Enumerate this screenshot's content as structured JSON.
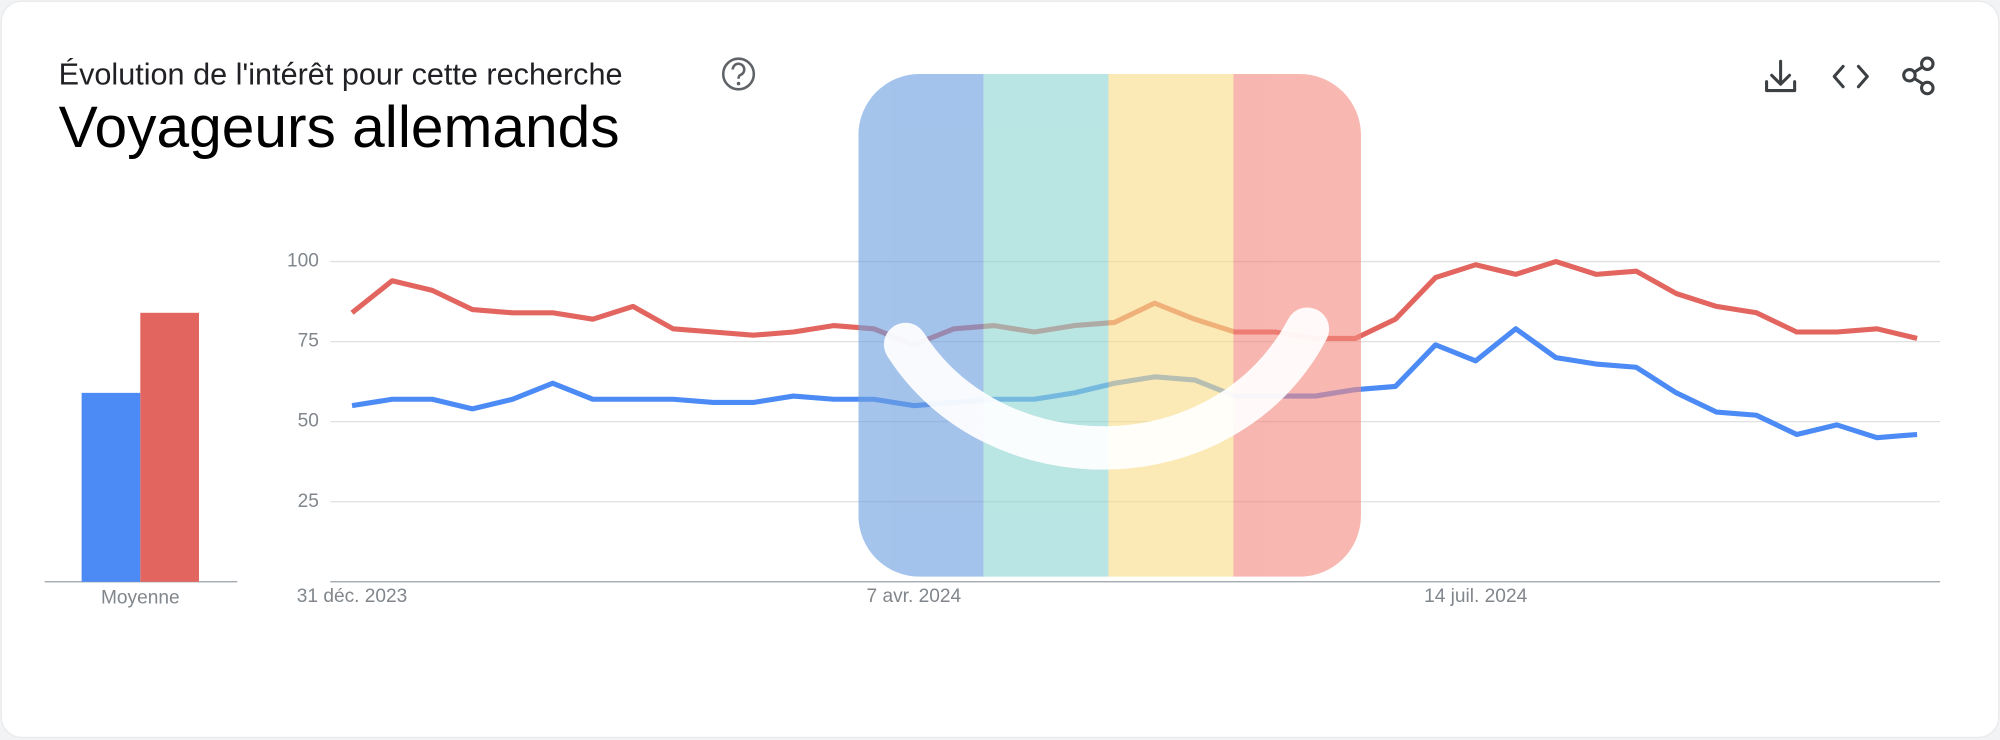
{
  "chart_data": [
    {
      "type": "bar",
      "categories": [
        "Moyenne"
      ],
      "series": [
        {
          "color": "#4c8bf5",
          "values": [
            59
          ]
        },
        {
          "color": "#e2665f",
          "values": [
            84
          ]
        }
      ]
    },
    {
      "type": "line",
      "subtitle": "Évolution de l'intérêt pour cette recherche",
      "title": "Voyageurs allemands",
      "categories": [
        "31 déc. 2023",
        null,
        null,
        null,
        null,
        null,
        null,
        null,
        null,
        null,
        null,
        null,
        null,
        null,
        "7 avr. 2024",
        null,
        null,
        null,
        null,
        null,
        null,
        null,
        null,
        null,
        null,
        null,
        null,
        null,
        "14 juil. 2024",
        null,
        null,
        null,
        null,
        null,
        null,
        null,
        null,
        null,
        null,
        null
      ],
      "series": [
        {
          "color": "#4c8bf5",
          "values": [
            55,
            57,
            57,
            54,
            57,
            62,
            57,
            57,
            57,
            56,
            56,
            58,
            57,
            57,
            55,
            56,
            57,
            57,
            59,
            62,
            64,
            63,
            58,
            58,
            58,
            60,
            61,
            74,
            69,
            79,
            70,
            68,
            67,
            59,
            53,
            52,
            46,
            49,
            45,
            46
          ]
        },
        {
          "color": "#e2665f",
          "values": [
            84,
            94,
            91,
            85,
            84,
            84,
            82,
            86,
            79,
            78,
            77,
            78,
            80,
            79,
            74,
            79,
            80,
            78,
            80,
            81,
            87,
            82,
            78,
            78,
            76,
            76,
            82,
            95,
            99,
            96,
            100,
            96,
            97,
            90,
            86,
            84,
            78,
            78,
            79,
            76
          ]
        }
      ],
      "ylim": [
        0,
        100
      ],
      "yticks": [
        25,
        50,
        75,
        100
      ],
      "grid": true
    }
  ]
}
